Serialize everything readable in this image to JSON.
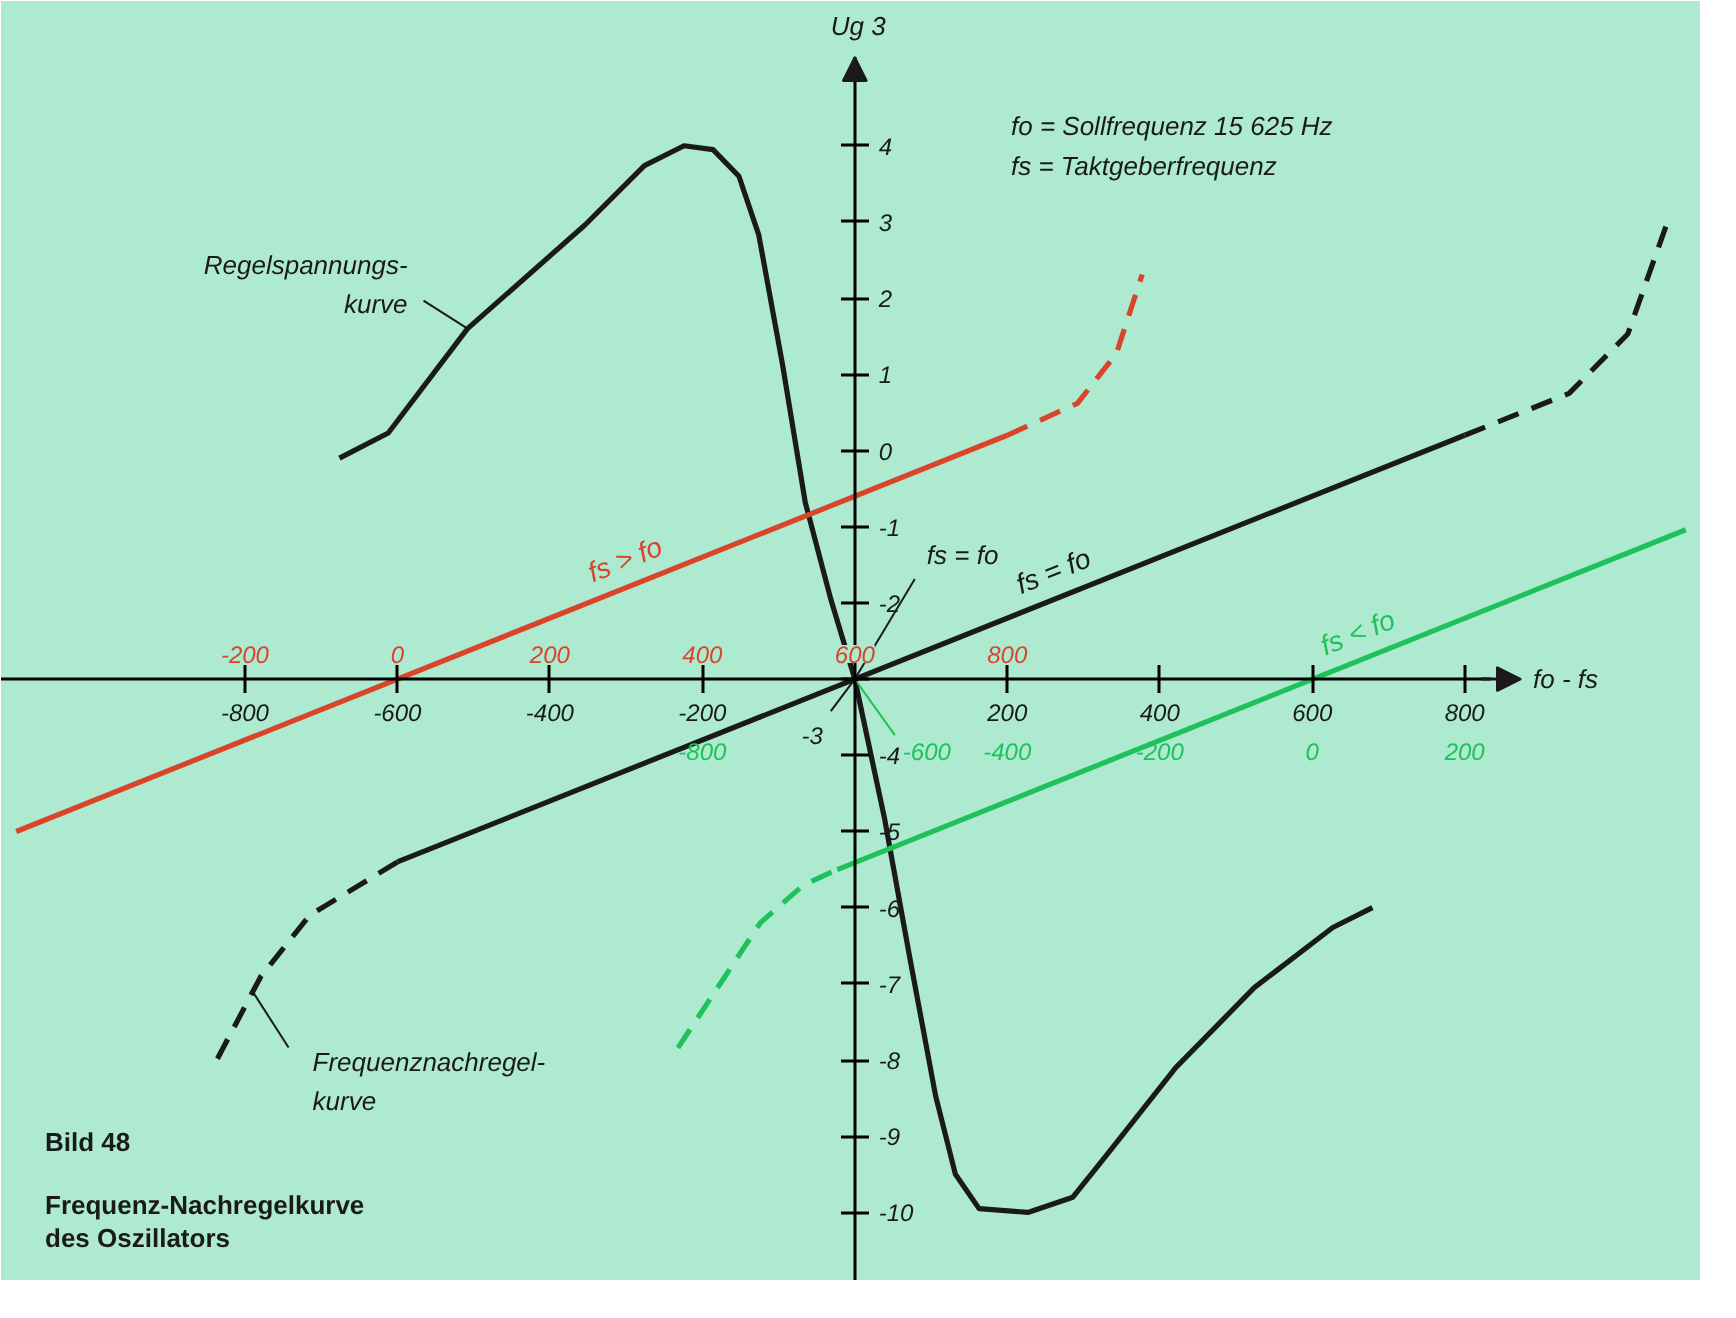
{
  "chart_data": {
    "type": "line",
    "title": "Bild 48",
    "subtitle": "Frequenz-Nachregelkurve\ndes Oszillators",
    "xlabel": "fo - fs",
    "ylabel": "Ug 3",
    "xlim": [
      -1120,
      1110
    ],
    "ylim": [
      -10.9,
      5.9
    ],
    "xticks": [
      -800,
      -600,
      -400,
      -200,
      200,
      400,
      600,
      800
    ],
    "yticks": [
      4,
      3,
      2,
      1,
      0,
      -1,
      -2,
      {
        "value": -3,
        "label": null
      },
      -4,
      -5,
      -6,
      -7,
      -8,
      -9,
      -10
    ],
    "x2lim": [
      -520,
      1710
    ],
    "x2ticks": [
      -200,
      0,
      200,
      400,
      600,
      800
    ],
    "grid": false,
    "legend": false,
    "series": [
      {
        "color": "#1a1a1a",
        "line_style": "solid",
        "x": [
          -676,
          -612,
          -508,
          -354,
          -276,
          -224,
          -186,
          -152,
          -126,
          -95,
          -65,
          -31,
          0,
          39,
          72,
          106,
          132,
          163,
          227,
          286,
          330,
          421,
          524,
          627,
          679
        ],
        "values": [
          -0.1,
          0.23,
          1.6,
          2.96,
          3.74,
          4.0,
          3.95,
          3.6,
          2.83,
          1.14,
          -0.68,
          -1.97,
          -3.0,
          -4.83,
          -6.65,
          -8.47,
          -9.5,
          -9.95,
          -10.0,
          -9.8,
          -9.25,
          -8.1,
          -7.05,
          -6.26,
          -6.0
        ]
      },
      {
        "name": "fs = fo",
        "color": "#1a1a1a",
        "line_style": "solid",
        "x": [
          -600,
          800
        ],
        "values": [
          -5.4,
          0.2
        ]
      },
      {
        "color": "#1a1a1a",
        "line_style": "dashed",
        "x": [
          -600,
          -715,
          -779,
          -837
        ],
        "values": [
          -5.4,
          -6.1,
          -6.9,
          -8.0
        ]
      },
      {
        "color": "#1a1a1a",
        "line_style": "dashed",
        "x": [
          800,
          937,
          1014,
          1066
        ],
        "values": [
          0.2,
          0.75,
          1.53,
          3.0
        ]
      },
      {
        "name": "fs > fo",
        "color": "#d9452b",
        "axis": "x2",
        "line_style": "solid",
        "x": [
          -500,
          800
        ],
        "values": [
          -5.0,
          0.2
        ]
      },
      {
        "color": "#d9452b",
        "axis": "x2",
        "line_style": "dashed",
        "x": [
          800,
          892,
          943,
          977
        ],
        "values": [
          0.2,
          0.62,
          1.27,
          2.31
        ]
      },
      {
        "color": "#1fc25a",
        "line_style": "dashed",
        "x": [
          -232,
          -124,
          -67,
          -23
        ],
        "values": [
          -7.84,
          -6.2,
          -5.7,
          -5.5
        ]
      },
      {
        "name": "fs < fo",
        "color": "#1fc25a",
        "line_style": "solid",
        "x": [
          -23,
          1090
        ],
        "values": [
          -5.5,
          -1.04
        ]
      }
    ],
    "annotations": [
      {
        "text": "Regelspannungs-\nkurve",
        "x": -508,
        "y": 1.6
      },
      {
        "text": "Frequenznachregel-\nkurve",
        "x": -790,
        "y": -7.1
      },
      {
        "text": "fs = fo",
        "x": 0,
        "y": -3
      },
      {
        "text": "-3",
        "x": 0,
        "y": -3
      },
      {
        "text": "-600",
        "x": 0,
        "y": -3
      },
      "fo = Sollfrequenz 15 625 Hz",
      "fs = Taktgeberfrequenz",
      "-800",
      "-400",
      "-200",
      "0",
      "200"
    ]
  }
}
